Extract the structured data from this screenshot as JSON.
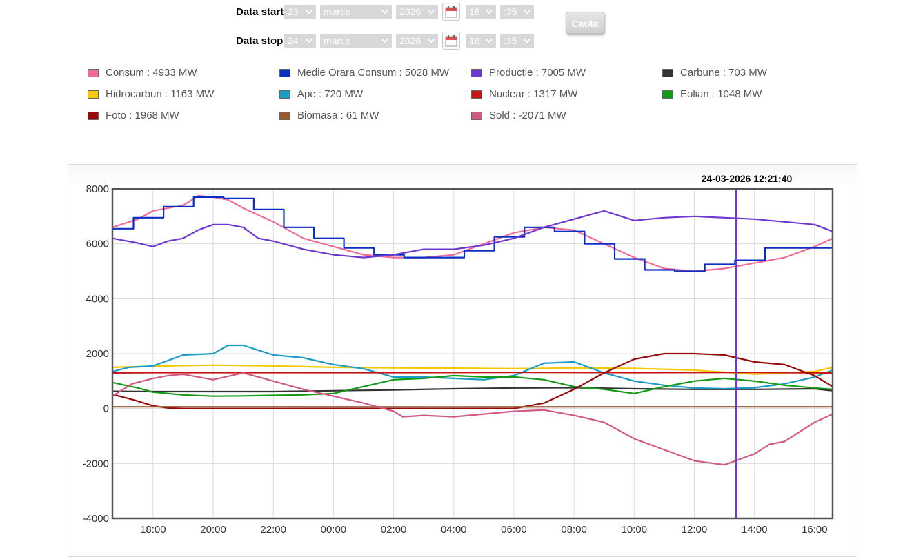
{
  "form": {
    "start": {
      "label": "Data start",
      "day": "23",
      "month": "martie",
      "year": "2026",
      "hour": "16",
      "minute": ":35"
    },
    "stop": {
      "label": "Data stop",
      "day": "24",
      "month": "martie",
      "year": "2026",
      "hour": "16",
      "minute": ":35"
    },
    "search_label": "Cauta"
  },
  "legend": [
    {
      "label": "Consum : 4933 MW",
      "color": "#f06b9a"
    },
    {
      "label": "Medie Orara Consum : 5028 MW",
      "color": "#0b2ec4"
    },
    {
      "label": "Productie : 7005 MW",
      "color": "#6e38d0"
    },
    {
      "label": "Carbune : 703 MW",
      "color": "#333333"
    },
    {
      "label": "Hidrocarburi : 1163 MW",
      "color": "#f5c800"
    },
    {
      "label": "Ape : 720 MW",
      "color": "#1a9cc8"
    },
    {
      "label": "Nuclear : 1317 MW",
      "color": "#c81414"
    },
    {
      "label": "Eolian : 1048 MW",
      "color": "#159a15"
    },
    {
      "label": "Foto : 1968 MW",
      "color": "#960a0a"
    },
    {
      "label": "Biomasa : 61 MW",
      "color": "#9a5a30"
    },
    {
      "label": "Sold : -2071 MW",
      "color": "#d05a82"
    }
  ],
  "chart_data": {
    "type": "line",
    "title": "",
    "cursor_label": "24-03-2026 12:21:40",
    "cursor_x": 19.4,
    "xlabel": "",
    "ylabel": "",
    "xlim": [
      -1.35,
      22.6
    ],
    "ylim": [
      -4000,
      8000
    ],
    "y_ticks": [
      8000,
      6000,
      4000,
      2000,
      0,
      -2000,
      -4000
    ],
    "y_tick_labels": [
      "8000",
      "6000",
      "4000",
      "2000",
      "0",
      "-2000",
      "-4000"
    ],
    "x_ticks": [
      0,
      2,
      4,
      6,
      8,
      10,
      12,
      14,
      16,
      18,
      20,
      22
    ],
    "x_tick_labels": [
      "18:00",
      "20:00",
      "22:00",
      "00:00",
      "02:00",
      "04:00",
      "06:00",
      "08:00",
      "10:00",
      "12:00",
      "14:00",
      "16:00"
    ],
    "series": [
      {
        "name": "Consum",
        "color": "#f06b9a",
        "x": [
          -1.35,
          -0.5,
          0,
          1,
          1.5,
          2,
          2.5,
          3,
          4,
          5,
          6,
          7,
          8,
          9,
          10,
          11,
          12,
          13,
          14,
          15,
          16,
          17,
          18,
          19,
          20,
          21,
          22,
          22.6
        ],
        "y": [
          6600,
          6900,
          7200,
          7400,
          7750,
          7700,
          7600,
          7300,
          6800,
          6200,
          5900,
          5600,
          5500,
          5500,
          5600,
          6000,
          6400,
          6600,
          6500,
          6000,
          5500,
          5100,
          5000,
          5100,
          5300,
          5500,
          5900,
          6200
        ]
      },
      {
        "name": "Medie Orara Consum",
        "color": "#0b2ec4",
        "step": true,
        "x": [
          -1.35,
          -0.65,
          0.35,
          1.35,
          2.35,
          3.35,
          4.35,
          5.35,
          6.35,
          7.35,
          8.35,
          9.35,
          10.35,
          11.35,
          12.35,
          13.35,
          14.35,
          15.35,
          16.35,
          17.35,
          18.35,
          19.35,
          20.35,
          21.35,
          22.6
        ],
        "y": [
          6550,
          6950,
          7350,
          7700,
          7650,
          7250,
          6600,
          6200,
          5850,
          5600,
          5500,
          5500,
          5750,
          6250,
          6600,
          6450,
          6000,
          5450,
          5050,
          5000,
          5250,
          5400,
          5850,
          5850,
          5850
        ]
      },
      {
        "name": "Productie",
        "color": "#6e38d0",
        "x": [
          -1.35,
          -0.6,
          0,
          0.5,
          1,
          1.5,
          2,
          2.5,
          3,
          3.5,
          4,
          5,
          6,
          7,
          8,
          9,
          10,
          11,
          12,
          13,
          14,
          14.5,
          15,
          16,
          17,
          18,
          19,
          20,
          21,
          22,
          22.6
        ],
        "y": [
          6200,
          6050,
          5900,
          6100,
          6200,
          6500,
          6700,
          6700,
          6600,
          6200,
          6100,
          5800,
          5600,
          5500,
          5600,
          5800,
          5800,
          5950,
          6200,
          6600,
          6900,
          7050,
          7200,
          6850,
          6950,
          7000,
          6950,
          6900,
          6800,
          6700,
          6450
        ]
      },
      {
        "name": "Carbune",
        "color": "#333333",
        "x": [
          -1.35,
          0,
          2,
          4,
          6,
          8,
          10,
          12,
          14,
          16,
          18,
          19,
          20,
          22,
          22.6
        ],
        "y": [
          630,
          620,
          620,
          620,
          650,
          680,
          720,
          750,
          760,
          720,
          700,
          700,
          700,
          720,
          650
        ]
      },
      {
        "name": "Hidrocarburi",
        "color": "#f5c800",
        "x": [
          -1.35,
          0,
          2,
          4,
          6,
          8,
          10,
          12,
          14,
          16,
          18,
          20,
          22,
          22.6
        ],
        "y": [
          1500,
          1540,
          1580,
          1550,
          1500,
          1480,
          1470,
          1450,
          1480,
          1460,
          1400,
          1250,
          1350,
          1500
        ]
      },
      {
        "name": "Ape",
        "color": "#1a9cc8",
        "x": [
          -1.35,
          -0.8,
          0,
          1,
          2,
          2.5,
          3,
          4,
          5,
          6,
          7,
          8,
          9,
          10,
          11,
          12,
          13,
          14,
          15,
          16,
          17,
          18,
          19,
          20,
          21,
          22,
          22.6
        ],
        "y": [
          1350,
          1500,
          1550,
          1950,
          2000,
          2300,
          2300,
          1950,
          1850,
          1600,
          1450,
          1150,
          1150,
          1100,
          1050,
          1200,
          1650,
          1700,
          1300,
          1000,
          850,
          750,
          720,
          760,
          900,
          1150,
          1400
        ]
      },
      {
        "name": "Nuclear",
        "color": "#c81414",
        "x": [
          -1.35,
          0,
          4,
          8,
          12,
          16,
          20,
          22.6
        ],
        "y": [
          1300,
          1310,
          1310,
          1310,
          1320,
          1310,
          1317,
          1300
        ]
      },
      {
        "name": "Eolian",
        "color": "#159a15",
        "x": [
          -1.35,
          -0.5,
          0,
          1,
          2,
          3,
          4,
          5,
          6,
          7,
          8,
          9,
          10,
          11,
          12,
          13,
          14,
          15,
          16,
          17,
          18,
          19,
          20,
          21,
          22,
          22.6
        ],
        "y": [
          950,
          750,
          600,
          500,
          450,
          460,
          480,
          500,
          550,
          800,
          1050,
          1100,
          1200,
          1150,
          1150,
          1050,
          800,
          700,
          550,
          800,
          1000,
          1100,
          1000,
          850,
          750,
          700
        ]
      },
      {
        "name": "Foto",
        "color": "#960a0a",
        "x": [
          -1.35,
          -0.6,
          0,
          0.5,
          1,
          10,
          11,
          12,
          13,
          14,
          15,
          16,
          17,
          18,
          19,
          20,
          21,
          22,
          22.6
        ],
        "y": [
          520,
          300,
          100,
          20,
          0,
          0,
          0,
          0,
          200,
          700,
          1300,
          1800,
          2000,
          2000,
          1950,
          1700,
          1600,
          1200,
          800
        ]
      },
      {
        "name": "Biomasa",
        "color": "#9a5a30",
        "x": [
          -1.35,
          4,
          10,
          16,
          22.6
        ],
        "y": [
          61,
          61,
          60,
          61,
          61
        ]
      },
      {
        "name": "Sold",
        "color": "#d05a82",
        "x": [
          -1.35,
          -0.7,
          0,
          0.5,
          1,
          2,
          3,
          4,
          5,
          6,
          7,
          8,
          8.3,
          9,
          10,
          11,
          12,
          13,
          14,
          15,
          16,
          17,
          18,
          19,
          20,
          20.5,
          21,
          22,
          22.6
        ],
        "y": [
          450,
          900,
          1100,
          1200,
          1250,
          1050,
          1300,
          1000,
          700,
          450,
          200,
          -100,
          -300,
          -250,
          -300,
          -200,
          -100,
          -50,
          -250,
          -500,
          -1100,
          -1500,
          -1900,
          -2050,
          -1650,
          -1300,
          -1200,
          -500,
          -200
        ]
      }
    ]
  }
}
